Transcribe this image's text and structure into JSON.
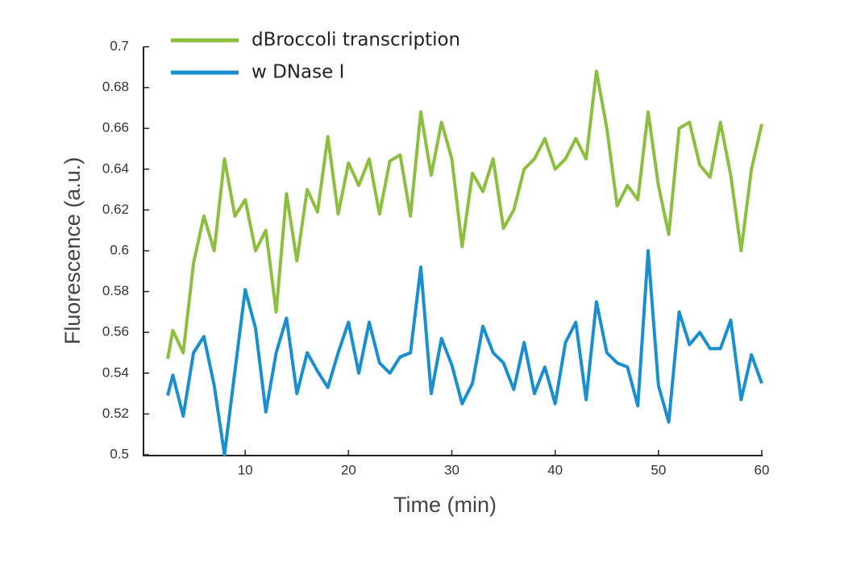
{
  "chart_data": {
    "type": "line",
    "xlabel": "Time (min)",
    "ylabel": "Fluorescence (a.u.)",
    "x": [
      2.5,
      3,
      4,
      5,
      6,
      7,
      8,
      9,
      10,
      11,
      12,
      13,
      14,
      15,
      16,
      17,
      18,
      19,
      20,
      21,
      22,
      23,
      24,
      25,
      26,
      27,
      28,
      29,
      30,
      31,
      32,
      33,
      34,
      35,
      36,
      37,
      38,
      39,
      40,
      41,
      42,
      43,
      44,
      45,
      46,
      47,
      48,
      49,
      50,
      51,
      52,
      53,
      54,
      55,
      56,
      57,
      58,
      59,
      60
    ],
    "series": [
      {
        "name": "dBroccoli transcription",
        "color": "#8cbf3f",
        "values": [
          0.547,
          0.561,
          0.55,
          0.594,
          0.617,
          0.6,
          0.645,
          0.617,
          0.625,
          0.6,
          0.61,
          0.57,
          0.628,
          0.595,
          0.63,
          0.619,
          0.656,
          0.618,
          0.643,
          0.632,
          0.645,
          0.618,
          0.644,
          0.647,
          0.617,
          0.668,
          0.637,
          0.663,
          0.645,
          0.602,
          0.638,
          0.629,
          0.645,
          0.611,
          0.62,
          0.64,
          0.645,
          0.655,
          0.64,
          0.645,
          0.655,
          0.645,
          0.688,
          0.66,
          0.622,
          0.632,
          0.625,
          0.668,
          0.632,
          0.608,
          0.66,
          0.663,
          0.642,
          0.636,
          0.663,
          0.637,
          0.6,
          0.64,
          0.662
        ]
      },
      {
        "name": "w DNase I",
        "color": "#1a8fd0",
        "values": [
          0.529,
          0.539,
          0.519,
          0.55,
          0.558,
          0.534,
          0.5,
          0.541,
          0.581,
          0.562,
          0.521,
          0.55,
          0.567,
          0.53,
          0.55,
          0.541,
          0.533,
          0.55,
          0.565,
          0.54,
          0.565,
          0.545,
          0.54,
          0.548,
          0.55,
          0.592,
          0.53,
          0.557,
          0.544,
          0.525,
          0.535,
          0.563,
          0.55,
          0.545,
          0.532,
          0.555,
          0.53,
          0.543,
          0.525,
          0.555,
          0.565,
          0.527,
          0.575,
          0.55,
          0.545,
          0.543,
          0.524,
          0.6,
          0.534,
          0.516,
          0.57,
          0.554,
          0.56,
          0.552,
          0.552,
          0.566,
          0.527,
          0.549,
          0.535
        ]
      }
    ],
    "xlim": [
      0,
      60
    ],
    "xticks": [
      10,
      20,
      30,
      40,
      50,
      60
    ],
    "ylim": [
      0.5,
      0.7
    ],
    "yticks": [
      0.5,
      0.52,
      0.54,
      0.56,
      0.58,
      0.6,
      0.62,
      0.64,
      0.66,
      0.68,
      0.7
    ],
    "grid": false
  }
}
